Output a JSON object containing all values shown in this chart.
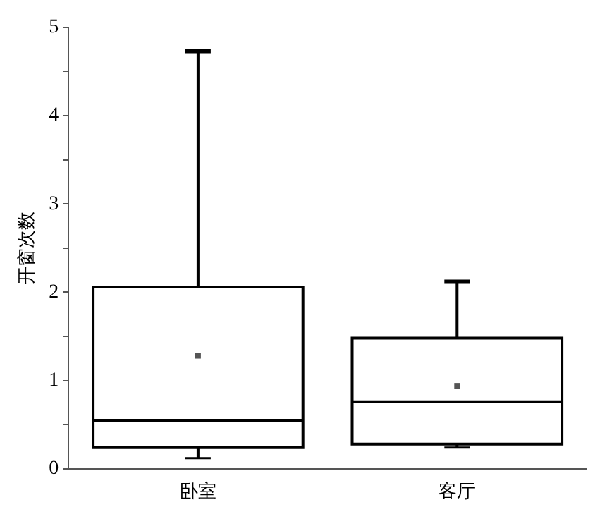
{
  "chart_data": {
    "type": "box",
    "ylabel": "开窗次数",
    "categories": [
      "卧室",
      "客厅"
    ],
    "color": "#000000",
    "boxes": [
      {
        "low": 0.12,
        "q1": 0.24,
        "median": 0.55,
        "q3": 2.06,
        "high": 4.73,
        "mean": 1.28
      },
      {
        "low": 0.24,
        "q1": 0.28,
        "median": 0.76,
        "q3": 1.48,
        "high": 2.12,
        "mean": 0.94
      }
    ],
    "ylim": [
      0,
      5
    ],
    "yticks": [
      0,
      {
        "value": 0.5,
        "label": null
      },
      1,
      {
        "value": 1.5,
        "label": null
      },
      2,
      {
        "value": 2.5,
        "label": null
      },
      3,
      {
        "value": 3.5,
        "label": null
      },
      4,
      {
        "value": 4.5,
        "label": null
      },
      5
    ],
    "grid": false,
    "legend": false
  }
}
